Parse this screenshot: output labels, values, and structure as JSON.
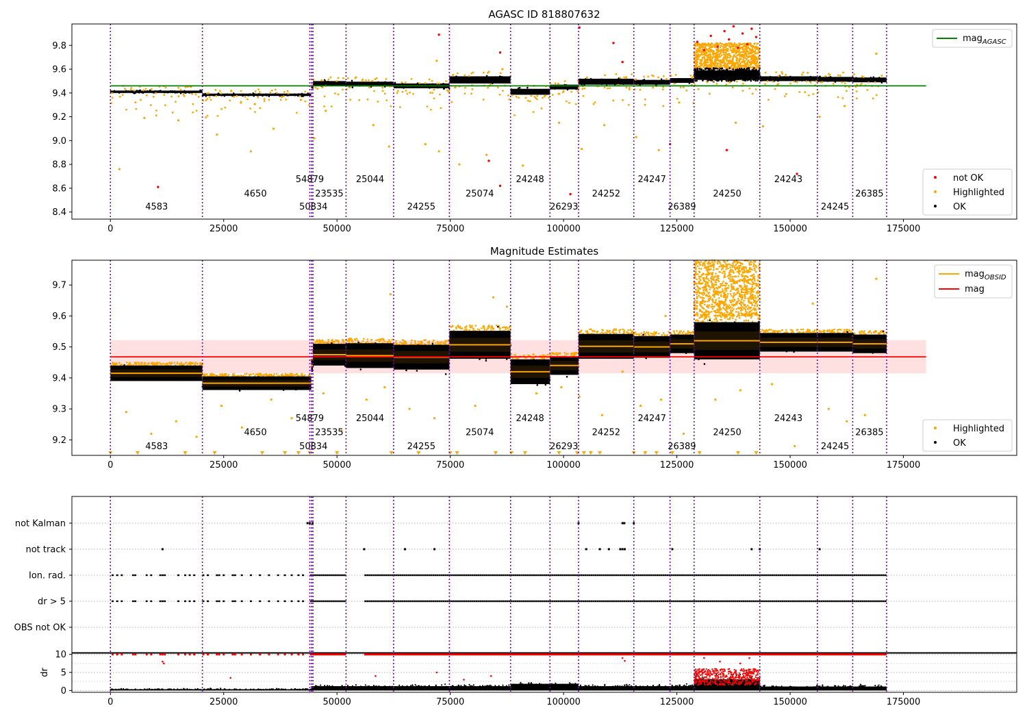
{
  "chart_data": [
    {
      "type": "scatter",
      "title": "AGASC ID 818807632",
      "xlim": [
        -8500,
        200000
      ],
      "ylim": [
        8.34,
        9.98
      ],
      "xticks": [
        0,
        25000,
        50000,
        75000,
        100000,
        125000,
        150000,
        175000
      ],
      "yticks": [
        8.4,
        8.6,
        8.8,
        9.0,
        9.2,
        9.4,
        9.6,
        9.8
      ],
      "ytick_labels": [
        "8.4",
        "8.6",
        "8.8",
        "9.0",
        "9.2",
        "9.4",
        "9.6",
        "9.8"
      ],
      "reference_line": {
        "name": "mag_AGASC",
        "y": 9.46,
        "x_range": [
          0,
          180000
        ],
        "color": "#008000"
      },
      "legend_upper": {
        "placement": "upper right",
        "entries": [
          {
            "text": "mag",
            "sub": "AGASC",
            "color": "#008000"
          }
        ]
      },
      "legend_lower": {
        "placement": "lower right",
        "entries": [
          {
            "text": "not OK",
            "color": "#ff0000"
          },
          {
            "text": "Highlighted",
            "color": "#ffa500"
          },
          {
            "text": "OK",
            "color": "#000000"
          }
        ]
      },
      "obs_segments": [
        {
          "start": 0,
          "end": 20300,
          "band_mean": 9.41,
          "band_halfwidth": 0.01
        },
        {
          "start": 20300,
          "end": 44300,
          "band_mean": 9.385,
          "band_halfwidth": 0.01
        },
        {
          "start": 44300,
          "end": 44700,
          "band_mean": 9.45,
          "band_halfwidth": 0.01
        },
        {
          "start": 44700,
          "end": 52000,
          "band_mean": 9.48,
          "band_halfwidth": 0.02
        },
        {
          "start": 52000,
          "end": 62500,
          "band_mean": 9.475,
          "band_halfwidth": 0.02
        },
        {
          "start": 62500,
          "end": 74800,
          "band_mean": 9.46,
          "band_halfwidth": 0.02
        },
        {
          "start": 74800,
          "end": 88300,
          "band_mean": 9.51,
          "band_halfwidth": 0.03
        },
        {
          "start": 88300,
          "end": 97000,
          "band_mean": 9.41,
          "band_halfwidth": 0.025
        },
        {
          "start": 97000,
          "end": 103300,
          "band_mean": 9.45,
          "band_halfwidth": 0.02
        },
        {
          "start": 103300,
          "end": 115500,
          "band_mean": 9.495,
          "band_halfwidth": 0.025
        },
        {
          "start": 115500,
          "end": 123500,
          "band_mean": 9.49,
          "band_halfwidth": 0.02
        },
        {
          "start": 123500,
          "end": 128800,
          "band_mean": 9.505,
          "band_halfwidth": 0.02
        },
        {
          "start": 128800,
          "end": 143300,
          "band_mean": 9.55,
          "band_halfwidth": 0.04
        },
        {
          "start": 143300,
          "end": 156000,
          "band_mean": 9.52,
          "band_halfwidth": 0.02
        },
        {
          "start": 156000,
          "end": 163800,
          "band_mean": 9.515,
          "band_halfwidth": 0.02
        },
        {
          "start": 163800,
          "end": 171300,
          "band_mean": 9.51,
          "band_halfwidth": 0.02
        }
      ],
      "obsid_labels": [
        {
          "text": "4583",
          "x": 10200,
          "y": 8.42
        },
        {
          "text": "4650",
          "x": 32000,
          "y": 8.53
        },
        {
          "text": "54879",
          "x": 44000,
          "y": 8.65
        },
        {
          "text": "50834",
          "x": 44800,
          "y": 8.42
        },
        {
          "text": "23535",
          "x": 48300,
          "y": 8.53
        },
        {
          "text": "25044",
          "x": 57300,
          "y": 8.65
        },
        {
          "text": "24255",
          "x": 68600,
          "y": 8.42
        },
        {
          "text": "25074",
          "x": 81500,
          "y": 8.53
        },
        {
          "text": "24248",
          "x": 92600,
          "y": 8.65
        },
        {
          "text": "26293",
          "x": 100100,
          "y": 8.42
        },
        {
          "text": "24252",
          "x": 109400,
          "y": 8.53
        },
        {
          "text": "24247",
          "x": 119500,
          "y": 8.65
        },
        {
          "text": "26389",
          "x": 126100,
          "y": 8.42
        },
        {
          "text": "24250",
          "x": 136100,
          "y": 8.53
        },
        {
          "text": "24243",
          "x": 149600,
          "y": 8.65
        },
        {
          "text": "24245",
          "x": 159900,
          "y": 8.42
        },
        {
          "text": "26385",
          "x": 167500,
          "y": 8.53
        }
      ],
      "obs_boundaries": [
        0,
        20300,
        44000,
        44400,
        44700,
        52000,
        62500,
        74800,
        88300,
        97000,
        103300,
        115500,
        123500,
        128800,
        143300,
        156000,
        163800,
        171300
      ],
      "not_ok_points": [
        [
          10500,
          8.61
        ],
        [
          72500,
          9.89
        ],
        [
          83500,
          8.83
        ],
        [
          86000,
          8.62
        ],
        [
          86000,
          9.74
        ],
        [
          101500,
          8.55
        ],
        [
          103500,
          9.95
        ],
        [
          111000,
          9.82
        ],
        [
          113000,
          9.66
        ],
        [
          123500,
          8.97
        ],
        [
          136000,
          8.92
        ],
        [
          151500,
          8.72
        ],
        [
          129500,
          9.83
        ],
        [
          131000,
          9.76
        ],
        [
          132500,
          9.88
        ],
        [
          134000,
          9.79
        ],
        [
          135500,
          9.92
        ],
        [
          136500,
          9.85
        ],
        [
          137500,
          9.96
        ],
        [
          138500,
          9.78
        ],
        [
          139500,
          9.9
        ],
        [
          140500,
          9.81
        ],
        [
          141500,
          9.94
        ],
        [
          142500,
          9.87
        ]
      ],
      "highlighted_outliers": [
        [
          2000,
          8.76
        ],
        [
          7500,
          9.19
        ],
        [
          15000,
          9.17
        ],
        [
          23500,
          9.05
        ],
        [
          31000,
          8.91
        ],
        [
          36000,
          9.1
        ],
        [
          45000,
          9.02
        ],
        [
          47500,
          9.25
        ],
        [
          58000,
          9.13
        ],
        [
          61500,
          8.95
        ],
        [
          69500,
          8.97
        ],
        [
          72500,
          8.91
        ],
        [
          77000,
          8.8
        ],
        [
          83000,
          8.88
        ],
        [
          91000,
          8.79
        ],
        [
          99000,
          9.15
        ],
        [
          104000,
          8.93
        ],
        [
          109000,
          9.13
        ],
        [
          116000,
          9.03
        ],
        [
          121000,
          8.92
        ],
        [
          125500,
          9.32
        ],
        [
          138000,
          9.15
        ],
        [
          144000,
          9.12
        ],
        [
          156500,
          9.2
        ],
        [
          162000,
          9.29
        ],
        [
          169000,
          9.73
        ],
        [
          72000,
          9.67
        ],
        [
          86500,
          9.6
        ]
      ]
    },
    {
      "type": "scatter",
      "title": "Magnitude Estimates",
      "xlim": [
        -8500,
        200000
      ],
      "ylim": [
        9.15,
        9.78
      ],
      "xticks": [
        0,
        25000,
        50000,
        75000,
        100000,
        125000,
        150000,
        175000
      ],
      "yticks": [
        9.2,
        9.3,
        9.4,
        9.5,
        9.6,
        9.7
      ],
      "ytick_labels": [
        "9.2",
        "9.3",
        "9.4",
        "9.5",
        "9.6",
        "9.7"
      ],
      "mean_mag": {
        "name": "mag",
        "y": 9.468,
        "band": [
          9.415,
          9.522
        ],
        "x_range": [
          0,
          180000
        ],
        "color": "#ff0000"
      },
      "legend_upper": {
        "placement": "upper right",
        "entries": [
          {
            "text": "mag",
            "sub": "OBSID",
            "color": "#ffa500"
          },
          {
            "text": "mag",
            "sub": "",
            "color": "#ff0000"
          }
        ]
      },
      "legend_lower": {
        "placement": "lower right",
        "entries": [
          {
            "text": "Highlighted",
            "color": "#ffa500"
          },
          {
            "text": "OK",
            "color": "#000000"
          }
        ]
      },
      "obs_segments": [
        {
          "start": 0,
          "end": 20300,
          "mag_obsid": 9.415,
          "spread": 0.025
        },
        {
          "start": 20300,
          "end": 44300,
          "mag_obsid": 9.383,
          "spread": 0.022
        },
        {
          "start": 44300,
          "end": 44700,
          "mag_obsid": 9.44,
          "spread": 0.02
        },
        {
          "start": 44700,
          "end": 52000,
          "mag_obsid": 9.475,
          "spread": 0.035
        },
        {
          "start": 52000,
          "end": 62500,
          "mag_obsid": 9.472,
          "spread": 0.04
        },
        {
          "start": 62500,
          "end": 74800,
          "mag_obsid": 9.467,
          "spread": 0.04
        },
        {
          "start": 74800,
          "end": 88300,
          "mag_obsid": 9.507,
          "spread": 0.045
        },
        {
          "start": 88300,
          "end": 97000,
          "mag_obsid": 9.42,
          "spread": 0.04
        },
        {
          "start": 97000,
          "end": 103300,
          "mag_obsid": 9.44,
          "spread": 0.03
        },
        {
          "start": 103300,
          "end": 115500,
          "mag_obsid": 9.502,
          "spread": 0.04
        },
        {
          "start": 115500,
          "end": 123500,
          "mag_obsid": 9.5,
          "spread": 0.035
        },
        {
          "start": 123500,
          "end": 128800,
          "mag_obsid": 9.51,
          "spread": 0.03
        },
        {
          "start": 128800,
          "end": 143300,
          "mag_obsid": 9.52,
          "spread": 0.06
        },
        {
          "start": 143300,
          "end": 156000,
          "mag_obsid": 9.515,
          "spread": 0.03
        },
        {
          "start": 156000,
          "end": 163800,
          "mag_obsid": 9.515,
          "spread": 0.03
        },
        {
          "start": 163800,
          "end": 171300,
          "mag_obsid": 9.51,
          "spread": 0.03
        }
      ],
      "obsid_labels": [
        {
          "text": "4583",
          "x": 10200,
          "y": 9.17
        },
        {
          "text": "4650",
          "x": 32000,
          "y": 9.215
        },
        {
          "text": "54879",
          "x": 44000,
          "y": 9.26
        },
        {
          "text": "50834",
          "x": 44800,
          "y": 9.17
        },
        {
          "text": "23535",
          "x": 48300,
          "y": 9.215
        },
        {
          "text": "25044",
          "x": 57300,
          "y": 9.26
        },
        {
          "text": "24255",
          "x": 68600,
          "y": 9.17
        },
        {
          "text": "25074",
          "x": 81500,
          "y": 9.215
        },
        {
          "text": "24248",
          "x": 92600,
          "y": 9.26
        },
        {
          "text": "26293",
          "x": 100100,
          "y": 9.17
        },
        {
          "text": "24252",
          "x": 109400,
          "y": 9.215
        },
        {
          "text": "24247",
          "x": 119500,
          "y": 9.26
        },
        {
          "text": "26389",
          "x": 126100,
          "y": 9.17
        },
        {
          "text": "24250",
          "x": 136100,
          "y": 9.215
        },
        {
          "text": "24243",
          "x": 149600,
          "y": 9.26
        },
        {
          "text": "24245",
          "x": 159900,
          "y": 9.17
        },
        {
          "text": "26385",
          "x": 167500,
          "y": 9.215
        }
      ],
      "obs_boundaries": [
        0,
        20300,
        44000,
        44400,
        44700,
        52000,
        62500,
        74800,
        88300,
        97000,
        103300,
        115500,
        123500,
        128800,
        143300,
        156000,
        163800,
        171300
      ],
      "below_range_markers": [
        0,
        6000,
        16500,
        23000,
        33500,
        38500,
        41500,
        44000,
        50000,
        62000,
        68000,
        75000,
        76500,
        85000,
        88500,
        91500,
        99000,
        103000,
        104500,
        106000,
        108000,
        115500,
        118000,
        120500,
        124000,
        130000,
        138500,
        142500
      ],
      "highlighted_outliers": [
        [
          3500,
          9.29
        ],
        [
          9000,
          9.22
        ],
        [
          14500,
          9.26
        ],
        [
          19000,
          9.21
        ],
        [
          24500,
          9.31
        ],
        [
          29000,
          9.24
        ],
        [
          35500,
          9.33
        ],
        [
          40000,
          9.27
        ],
        [
          47000,
          9.35
        ],
        [
          51000,
          9.23
        ],
        [
          56500,
          9.33
        ],
        [
          60500,
          9.37
        ],
        [
          61800,
          9.67
        ],
        [
          66000,
          9.3
        ],
        [
          71500,
          9.27
        ],
        [
          80500,
          9.31
        ],
        [
          84500,
          9.66
        ],
        [
          87500,
          9.63
        ],
        [
          94000,
          9.35
        ],
        [
          99500,
          9.37
        ],
        [
          103500,
          9.34
        ],
        [
          108500,
          9.28
        ],
        [
          113000,
          9.42
        ],
        [
          117000,
          9.31
        ],
        [
          121500,
          9.33
        ],
        [
          122500,
          9.6
        ],
        [
          126500,
          9.22
        ],
        [
          133500,
          9.33
        ],
        [
          139000,
          9.36
        ],
        [
          146000,
          9.38
        ],
        [
          151000,
          9.18
        ],
        [
          155000,
          9.64
        ],
        [
          158500,
          9.3
        ],
        [
          162500,
          9.26
        ],
        [
          166500,
          9.28
        ],
        [
          169000,
          9.72
        ]
      ]
    },
    {
      "type": "scatter",
      "title": "",
      "xlim": [
        -8500,
        200000
      ],
      "categories": [
        "not Kalman",
        "not track",
        "Ion. rad.",
        "dr > 5",
        "OBS not OK"
      ],
      "sparse_flags": {
        "not Kalman": [
          43500,
          44000,
          44600,
          103300,
          113000,
          113400,
          115500
        ],
        "not track": [
          11500,
          56000,
          65000,
          71500,
          105000,
          108000,
          110000,
          112500,
          113000,
          113500,
          124000,
          141500,
          143300,
          156500
        ]
      },
      "dense_flag_ranges": {
        "Ion. rad.": [
          [
            44000,
            52000
          ],
          [
            56000,
            171300
          ]
        ],
        "dr > 5": [
          [
            44000,
            52000
          ],
          [
            56000,
            171300
          ]
        ]
      },
      "sparse_flag_runs_before_44000": [
        500,
        1500,
        2500,
        5000,
        5500,
        8000,
        9000,
        11000,
        11500,
        12000,
        15000,
        16500,
        17500,
        18500,
        20500,
        21500,
        23500,
        24000,
        25000,
        27000,
        27500,
        29000,
        31000,
        33000,
        35000,
        37000,
        38500,
        40000,
        41500,
        42500
      ]
    },
    {
      "type": "scatter",
      "title": "",
      "ylabel": "dr",
      "xlim": [
        -8500,
        200000
      ],
      "ylim": [
        -0.5,
        10.5
      ],
      "xticks": [
        0,
        25000,
        50000,
        75000,
        100000,
        125000,
        150000,
        175000
      ],
      "yticks": [
        0,
        5,
        10
      ],
      "ytick_labels": [
        "0",
        "5",
        "10"
      ],
      "saturated_value": 10,
      "baseline_segments": [
        {
          "start": 0,
          "end": 44300,
          "level": 0.2,
          "spread": 0.3
        },
        {
          "start": 44300,
          "end": 88300,
          "level": 0.9,
          "spread": 0.6
        },
        {
          "start": 88300,
          "end": 103300,
          "level": 1.4,
          "spread": 0.9
        },
        {
          "start": 103300,
          "end": 128800,
          "level": 0.9,
          "spread": 0.6
        },
        {
          "start": 128800,
          "end": 143300,
          "level": 2.0,
          "spread": 2.2
        },
        {
          "start": 143300,
          "end": 171300,
          "level": 0.8,
          "spread": 0.6
        }
      ],
      "red_outliers": [
        [
          11500,
          8.0
        ],
        [
          11800,
          7.5
        ],
        [
          26500,
          3.5
        ],
        [
          58500,
          4.0
        ],
        [
          72000,
          5.0
        ],
        [
          78000,
          3.0
        ],
        [
          84000,
          4.0
        ],
        [
          113000,
          9.0
        ],
        [
          113500,
          8.2
        ],
        [
          131000,
          9.0
        ],
        [
          134500,
          8.0
        ],
        [
          139000,
          7.5
        ],
        [
          141000,
          9.0
        ]
      ]
    }
  ]
}
